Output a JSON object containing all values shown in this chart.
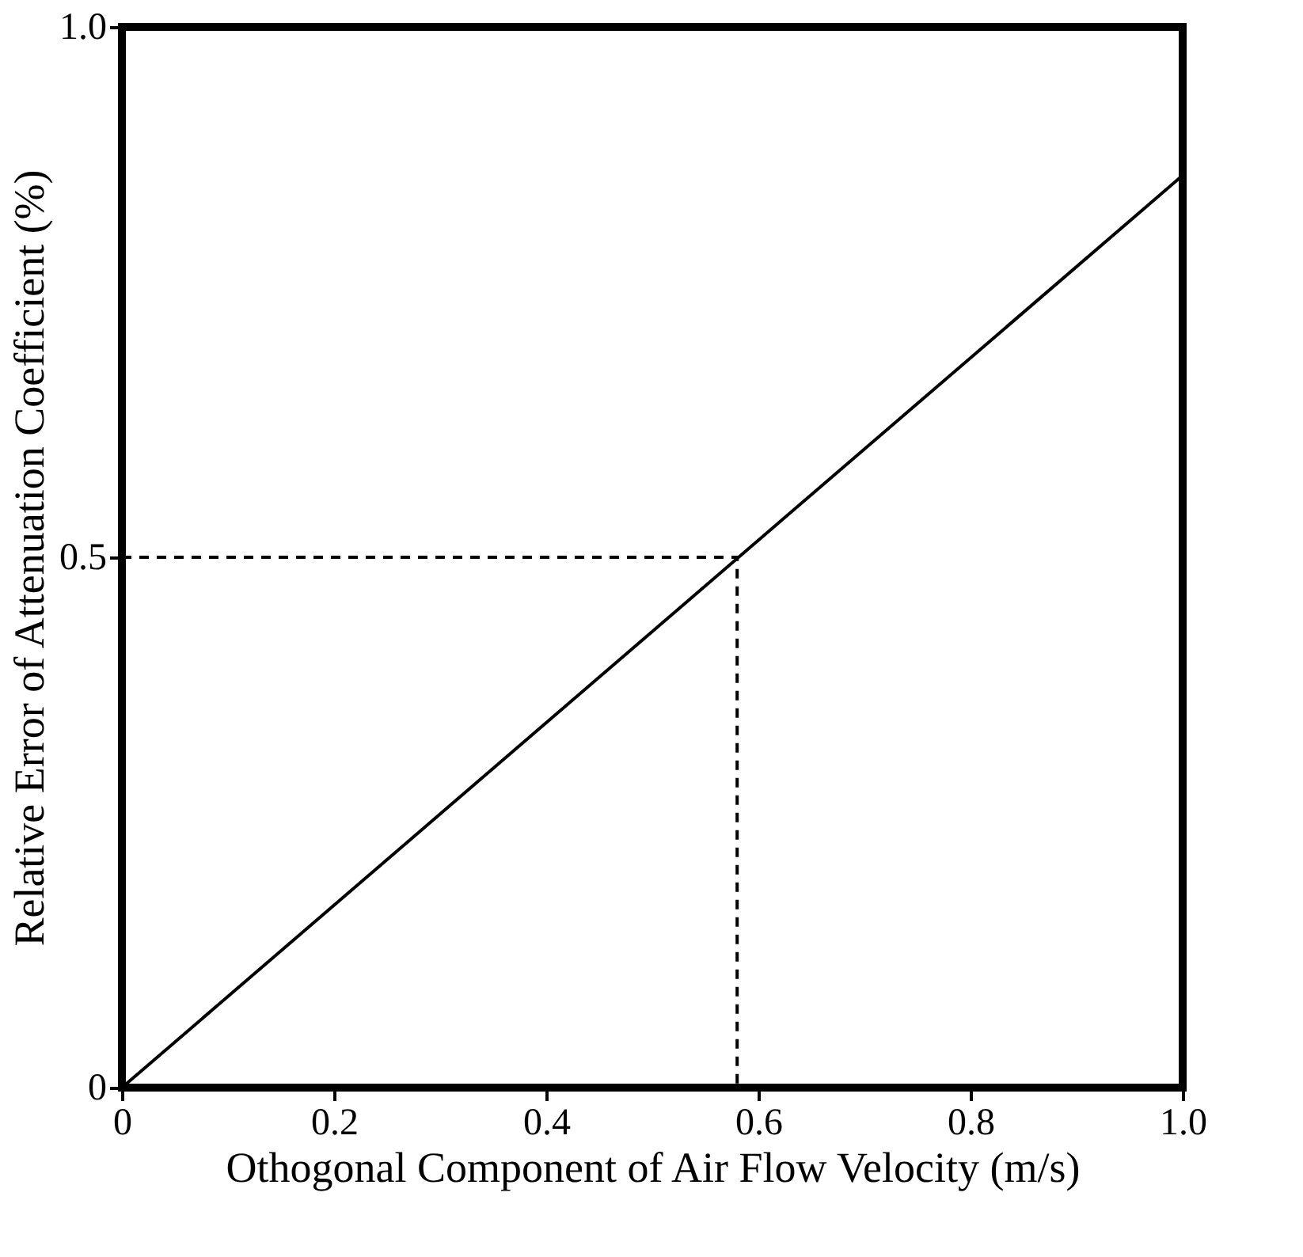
{
  "chart_data": {
    "type": "line",
    "xlabel": "Othogonal Component of Air Flow Velocity (m/s)",
    "ylabel": "Relative Error of Attenuation Coefficient (%)",
    "xlim": [
      0,
      1
    ],
    "ylim": [
      0,
      1
    ],
    "xticks": [
      0,
      0.2,
      0.4,
      0.6,
      0.8,
      {
        "value": 1,
        "label": "1.0"
      }
    ],
    "yticks": [
      0,
      0.5,
      {
        "value": 1,
        "label": "1.0"
      }
    ],
    "grid": false,
    "marker": "none",
    "series": [
      {
        "color": "#000000",
        "line_style": "solid",
        "x": [
          0,
          1
        ],
        "values": [
          0,
          0.86
        ]
      },
      {
        "color": "#000000",
        "line_style": "dashed",
        "x": [
          0,
          0.58,
          0.58
        ],
        "values": [
          0.5,
          0.5,
          0
        ]
      }
    ]
  }
}
